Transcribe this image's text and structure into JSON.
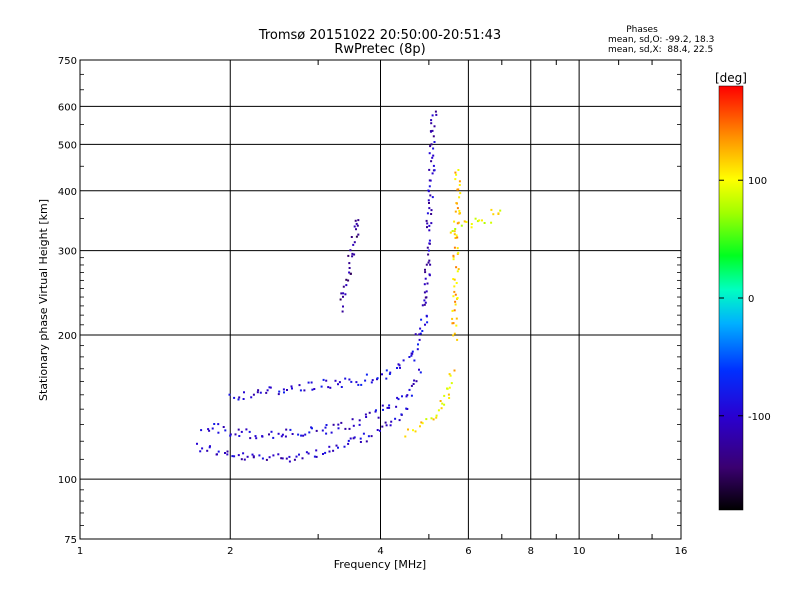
{
  "chart_data": {
    "type": "scatter",
    "title": "Tromsø 20151022 20:50:00-20:51:43",
    "subtitle": "RwPretec (8p)",
    "xlabel": "Frequency [MHz]",
    "ylabel": "Stationary phase Virtual Height [km]",
    "x_scale": "log",
    "y_scale": "log",
    "xlim": [
      1,
      16
    ],
    "ylim": [
      75,
      750
    ],
    "x_ticks": [
      1,
      2,
      4,
      6,
      8,
      10,
      16
    ],
    "y_ticks": [
      75,
      100,
      200,
      300,
      400,
      500,
      600,
      750
    ],
    "grid": true,
    "stats": {
      "title": "Phases",
      "line_o": "mean, sd,O: -99.2, 18.3",
      "line_x": "mean, sd,X:  88.4, 22.5"
    },
    "colorbar": {
      "label": "[deg]",
      "range": [
        -180,
        180
      ],
      "ticks": [
        -100,
        0,
        100
      ],
      "colormap": "rainbow (black-purple-blue-cyan-green-yellow-orange-red)"
    },
    "traces": [
      {
        "x": [
          1.7,
          1.85,
          2.0,
          2.25,
          2.6,
          3.0,
          3.4,
          3.8,
          4.2,
          4.55
        ],
        "y": [
          118,
          115,
          112,
          111,
          112,
          114,
          118,
          124,
          132,
          140
        ],
        "phase": -105
      },
      {
        "x": [
          1.75,
          2.0,
          2.3,
          2.7,
          3.1,
          3.5,
          3.9,
          4.3,
          4.6,
          4.8
        ],
        "y": [
          130,
          126,
          124,
          125,
          127,
          131,
          137,
          146,
          155,
          170
        ],
        "phase": -100
      },
      {
        "x": [
          2.0,
          2.3,
          2.6,
          3.0,
          3.4,
          3.8,
          4.2,
          4.6,
          4.9
        ],
        "y": [
          150,
          152,
          155,
          158,
          160,
          163,
          168,
          180,
          220
        ],
        "phase": -95
      },
      {
        "x": [
          4.9,
          4.95,
          5.0,
          5.05,
          5.1
        ],
        "y": [
          220,
          280,
          350,
          450,
          600
        ],
        "phase": -110
      },
      {
        "x": [
          3.3,
          3.4,
          3.5,
          3.6
        ],
        "y": [
          230,
          260,
          300,
          360
        ],
        "phase": -130
      },
      {
        "x": [
          4.5,
          4.8,
          5.1,
          5.4,
          5.55
        ],
        "y": [
          126,
          130,
          136,
          148,
          170
        ],
        "phase": 110
      },
      {
        "x": [
          5.6,
          5.65,
          5.7
        ],
        "y": [
          200,
          300,
          450
        ],
        "phase": 120
      },
      {
        "x": [
          5.55,
          6.0,
          6.5,
          7.0
        ],
        "y": [
          335,
          340,
          350,
          370
        ],
        "phase": 100
      }
    ]
  }
}
